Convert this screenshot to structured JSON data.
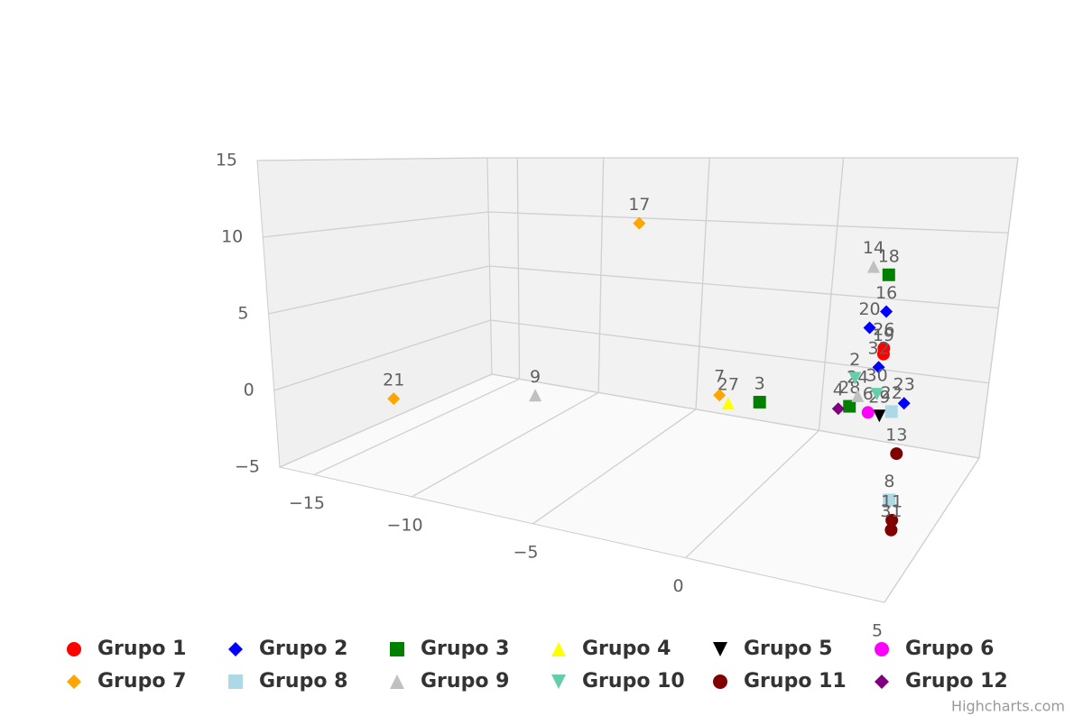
{
  "chart_data": {
    "type": "scatter3d",
    "xlim": [
      -17,
      5
    ],
    "ylim": [
      -5,
      15
    ],
    "zlim": [
      0,
      10
    ],
    "xticks": [
      {
        "value": -15,
        "label": "−15"
      },
      {
        "value": -10,
        "label": "−10"
      },
      {
        "value": -5,
        "label": "−5"
      },
      0,
      5
    ],
    "yticks": [
      {
        "value": -5,
        "label": "−5"
      },
      0,
      5,
      10,
      15
    ],
    "grid": true,
    "series": [
      {
        "name": "Grupo 1",
        "color": "#ff0000",
        "symbol": "circle",
        "x": [
          3.5,
          3.5
        ],
        "y": [
          3.5,
          3.8
        ],
        "z": [
          5,
          5
        ],
        "labels": [
          "19",
          "26"
        ]
      },
      {
        "name": "Grupo 2",
        "color": "#0000ff",
        "symbol": "diamond",
        "x": [
          3.5,
          3.1,
          3.4,
          4.1
        ],
        "y": [
          5.7,
          4.8,
          2.8,
          1.1
        ],
        "z": [
          5,
          5,
          5,
          5
        ],
        "labels": [
          "16",
          "20",
          "32",
          "23"
        ]
      },
      {
        "name": "Grupo 3",
        "color": "#008000",
        "symbol": "square",
        "x": [
          3.5,
          0.1,
          2.7
        ],
        "y": [
          7.6,
          0.2,
          0.6
        ],
        "z": [
          5,
          5,
          5
        ],
        "labels": [
          "18",
          "3",
          "28"
        ]
      },
      {
        "name": "Grupo 4",
        "color": "#ffff00",
        "symbol": "triangle",
        "x": [
          -0.9
        ],
        "y": [
          -0.1
        ],
        "z": [
          5
        ],
        "labels": [
          "27"
        ]
      },
      {
        "name": "Grupo 5",
        "color": "#000000",
        "symbol": "triangle-down",
        "x": [
          3.5
        ],
        "y": [
          0.3
        ],
        "z": [
          5
        ],
        "labels": [
          "29"
        ]
      },
      {
        "name": "Grupo 6",
        "color": "#ff00ff",
        "symbol": "circle",
        "x": [
          3.2
        ],
        "y": [
          0.4
        ],
        "z": [
          5
        ],
        "labels": [
          "6"
        ]
      },
      {
        "name": "Grupo 7",
        "color": "#ffa500",
        "symbol": "diamond",
        "x": [
          -4.2,
          -16.4,
          -1.2
        ],
        "y": [
          10.2,
          -3.2,
          0.3
        ],
        "z": [
          5,
          5,
          5
        ],
        "labels": [
          "17",
          "21",
          "7"
        ]
      },
      {
        "name": "Grupo 8",
        "color": "#add8e6",
        "symbol": "square",
        "x": [
          3.9,
          3.8
        ],
        "y": [
          -3.9,
          0.6
        ],
        "z": [
          5,
          5
        ],
        "labels": [
          "8",
          "22"
        ]
      },
      {
        "name": "Grupo 9",
        "color": "#c0c0c0",
        "symbol": "triangle",
        "x": [
          -8.5,
          3.1,
          2.9
        ],
        "y": [
          -1.3,
          8.0,
          1.2
        ],
        "z": [
          5,
          5,
          5
        ],
        "labels": [
          "9",
          "14",
          "24"
        ]
      },
      {
        "name": "Grupo 10",
        "color": "#66cdaa",
        "symbol": "triangle-down",
        "x": [
          2.8,
          3.4
        ],
        "y": [
          2.1,
          1.4
        ],
        "z": [
          5,
          5
        ],
        "labels": [
          "2",
          "30"
        ]
      },
      {
        "name": "Grupo 11",
        "color": "#800000",
        "symbol": "circle",
        "x": [
          4.0,
          4.0,
          4.0
        ],
        "y": [
          -1.5,
          -4.9,
          -5.4
        ],
        "z": [
          5,
          5,
          5
        ],
        "labels": [
          "13",
          "11",
          "31"
        ]
      },
      {
        "name": "Grupo 12",
        "color": "#800080",
        "symbol": "diamond",
        "x": [
          2.4
        ],
        "y": [
          0.4
        ],
        "z": [
          5
        ],
        "labels": [
          "4"
        ]
      }
    ],
    "credits": "Highcharts.com"
  }
}
